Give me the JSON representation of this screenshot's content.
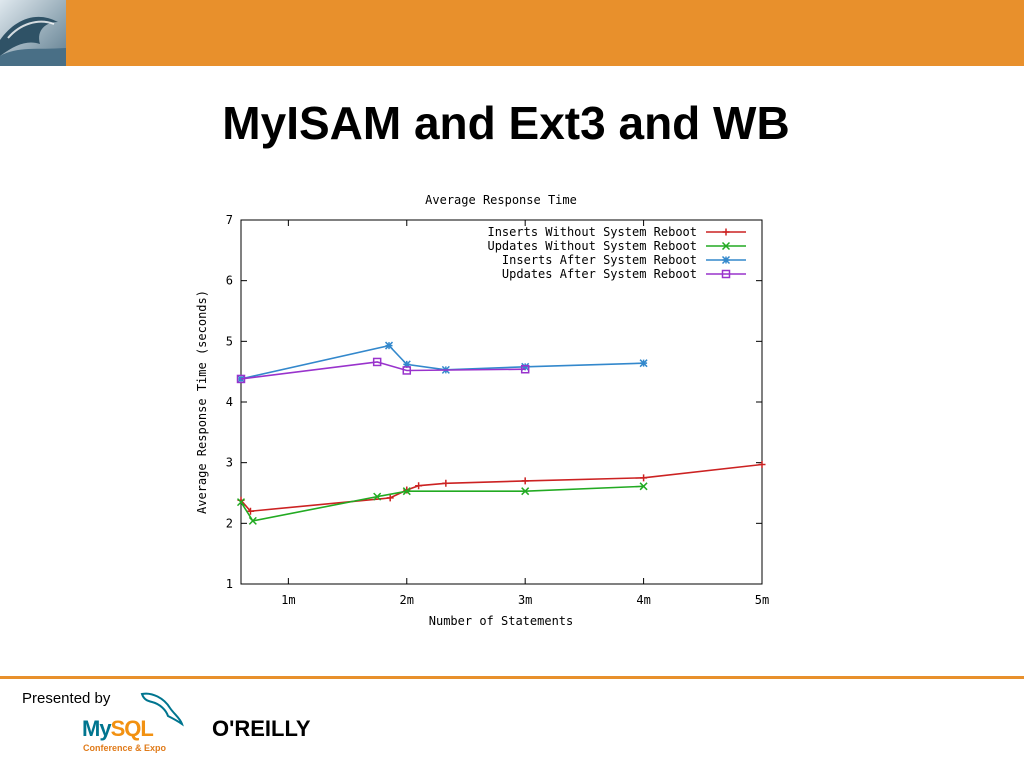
{
  "slide": {
    "title": "MyISAM and Ext3 and WB",
    "presented_by": "Presented by",
    "mysql_logo": {
      "word_my": "My",
      "word_sql": "SQL",
      "subtitle": "Conference & Expo"
    },
    "oreilly_logo": "O'REILLY",
    "colors": {
      "accent": "#e8902c",
      "mysql_blue": "#00758f",
      "mysql_orange": "#f29111"
    }
  },
  "chart_data": {
    "type": "line",
    "title": "Average Response Time",
    "xlabel": "Number of Statements",
    "ylabel": "Average Response Time (seconds)",
    "xlim": [
      0.6,
      5.0
    ],
    "ylim": [
      1,
      7
    ],
    "x_unit": "m",
    "xticks": [
      1,
      2,
      3,
      4,
      5
    ],
    "xtick_labels": [
      "1m",
      "2m",
      "3m",
      "4m",
      "5m"
    ],
    "yticks": [
      1,
      2,
      3,
      4,
      5,
      6,
      7
    ],
    "grid": false,
    "legend_position": "top-right",
    "series": [
      {
        "name": "Inserts Without System Reboot",
        "color": "#cc2222",
        "marker": "plus",
        "x": [
          0.6,
          0.68,
          1.86,
          2.0,
          2.1,
          2.33,
          3.0,
          4.0,
          5.0
        ],
        "y": [
          2.38,
          2.2,
          2.42,
          2.55,
          2.62,
          2.66,
          2.7,
          2.75,
          2.97
        ]
      },
      {
        "name": "Updates Without System Reboot",
        "color": "#22aa22",
        "marker": "x",
        "x": [
          0.6,
          0.7,
          1.75,
          2.0,
          3.0,
          4.0
        ],
        "y": [
          2.35,
          2.04,
          2.44,
          2.53,
          2.53,
          2.61
        ]
      },
      {
        "name": "Inserts After System Reboot",
        "color": "#3388cc",
        "marker": "star",
        "x": [
          0.6,
          1.85,
          2.0,
          2.33,
          3.0,
          4.0
        ],
        "y": [
          4.38,
          4.93,
          4.62,
          4.53,
          4.58,
          4.64
        ]
      },
      {
        "name": "Updates After System Reboot",
        "color": "#9933cc",
        "marker": "square",
        "x": [
          0.6,
          1.75,
          2.0,
          3.0
        ],
        "y": [
          4.38,
          4.66,
          4.52,
          4.54
        ]
      }
    ]
  }
}
